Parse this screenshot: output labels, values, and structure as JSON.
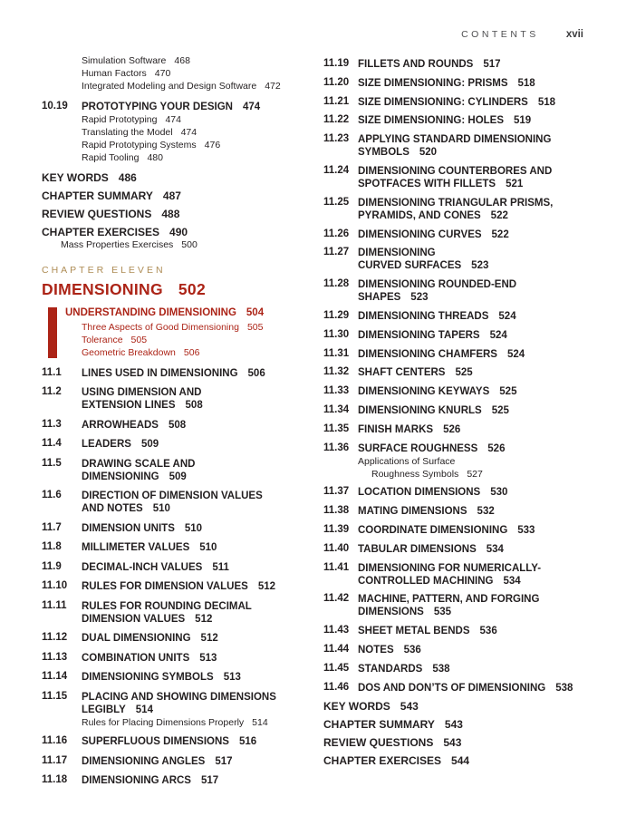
{
  "header": {
    "label": "CONTENTS",
    "page": "xvii"
  },
  "colors": {
    "red": "#ac2417",
    "tan": "#ae8c55",
    "text": "#231f20",
    "gray": "#4f4f51"
  },
  "left_column": {
    "items": [
      {
        "type": "subgroup",
        "subs": [
          {
            "lines": [
              "Simulation Software"
            ],
            "page": "468"
          },
          {
            "lines": [
              "Human Factors"
            ],
            "page": "470"
          },
          {
            "lines": [
              "Integrated Modeling and Design Software"
            ],
            "page": "472"
          }
        ]
      },
      {
        "type": "entry",
        "num": "10.19",
        "lines": [
          "PROTOTYPING YOUR DESIGN"
        ],
        "page": "474",
        "subs": [
          {
            "lines": [
              "Rapid Prototyping"
            ],
            "page": "474"
          },
          {
            "lines": [
              "Translating the Model"
            ],
            "page": "474"
          },
          {
            "lines": [
              "Rapid Prototyping Systems"
            ],
            "page": "476"
          },
          {
            "lines": [
              "Rapid Tooling"
            ],
            "page": "480"
          }
        ]
      },
      {
        "type": "back",
        "label": "KEY WORDS",
        "page": "486"
      },
      {
        "type": "back",
        "label": "CHAPTER SUMMARY",
        "page": "487"
      },
      {
        "type": "back",
        "label": "REVIEW QUESTIONS",
        "page": "488"
      },
      {
        "type": "back",
        "label": "CHAPTER EXERCISES",
        "page": "490",
        "subs": [
          {
            "lines": [
              "Mass Properties Exercises"
            ],
            "page": "500",
            "indent": "small"
          }
        ]
      },
      {
        "type": "chapter",
        "label": "CHAPTER ELEVEN",
        "title": "DIMENSIONING",
        "page": "502"
      },
      {
        "type": "highlight",
        "title": "UNDERSTANDING DIMENSIONING",
        "page": "504",
        "subs": [
          {
            "lines": [
              "Three Aspects of Good Dimensioning"
            ],
            "page": "505"
          },
          {
            "lines": [
              "Tolerance"
            ],
            "page": "505"
          },
          {
            "lines": [
              "Geometric Breakdown"
            ],
            "page": "506"
          }
        ]
      },
      {
        "type": "entry",
        "num": "11.1",
        "lines": [
          "LINES USED IN DIMENSIONING"
        ],
        "page": "506"
      },
      {
        "type": "entry",
        "num": "11.2",
        "lines": [
          "USING DIMENSION AND",
          "EXTENSION LINES"
        ],
        "page": "508"
      },
      {
        "type": "entry",
        "num": "11.3",
        "lines": [
          "ARROWHEADS"
        ],
        "page": "508"
      },
      {
        "type": "entry",
        "num": "11.4",
        "lines": [
          "LEADERS"
        ],
        "page": "509"
      },
      {
        "type": "entry",
        "num": "11.5",
        "lines": [
          "DRAWING SCALE AND",
          "DIMENSIONING"
        ],
        "page": "509"
      },
      {
        "type": "entry",
        "num": "11.6",
        "lines": [
          "DIRECTION OF DIMENSION VALUES",
          "AND NOTES"
        ],
        "page": "510"
      },
      {
        "type": "entry",
        "num": "11.7",
        "lines": [
          "DIMENSION UNITS"
        ],
        "page": "510"
      },
      {
        "type": "entry",
        "num": "11.8",
        "lines": [
          "MILLIMETER VALUES"
        ],
        "page": "510"
      },
      {
        "type": "entry",
        "num": "11.9",
        "lines": [
          "DECIMAL-INCH VALUES"
        ],
        "page": "511"
      },
      {
        "type": "entry",
        "num": "11.10",
        "lines": [
          "RULES FOR DIMENSION VALUES"
        ],
        "page": "512"
      },
      {
        "type": "entry",
        "num": "11.11",
        "lines": [
          "RULES FOR ROUNDING DECIMAL",
          "DIMENSION VALUES"
        ],
        "page": "512"
      },
      {
        "type": "entry",
        "num": "11.12",
        "lines": [
          "DUAL DIMENSIONING"
        ],
        "page": "512"
      },
      {
        "type": "entry",
        "num": "11.13",
        "lines": [
          "COMBINATION UNITS"
        ],
        "page": "513"
      },
      {
        "type": "entry",
        "num": "11.14",
        "lines": [
          "DIMENSIONING SYMBOLS"
        ],
        "page": "513"
      },
      {
        "type": "entry",
        "num": "11.15",
        "lines": [
          "PLACING AND SHOWING DIMENSIONS",
          "LEGIBLY"
        ],
        "page": "514",
        "subs": [
          {
            "lines": [
              "Rules for Placing Dimensions Properly"
            ],
            "page": "514"
          }
        ]
      },
      {
        "type": "entry",
        "num": "11.16",
        "lines": [
          "SUPERFLUOUS DIMENSIONS"
        ],
        "page": "516"
      },
      {
        "type": "entry",
        "num": "11.17",
        "lines": [
          "DIMENSIONING ANGLES"
        ],
        "page": "517"
      },
      {
        "type": "entry",
        "num": "11.18",
        "lines": [
          "DIMENSIONING ARCS"
        ],
        "page": "517"
      }
    ]
  },
  "right_column": {
    "items": [
      {
        "type": "entry",
        "num": "11.19",
        "lines": [
          "FILLETS AND ROUNDS"
        ],
        "page": "517"
      },
      {
        "type": "entry",
        "num": "11.20",
        "lines": [
          "SIZE DIMENSIONING: PRISMS"
        ],
        "page": "518"
      },
      {
        "type": "entry",
        "num": "11.21",
        "lines": [
          "SIZE DIMENSIONING: CYLINDERS"
        ],
        "page": "518"
      },
      {
        "type": "entry",
        "num": "11.22",
        "lines": [
          "SIZE DIMENSIONING: HOLES"
        ],
        "page": "519"
      },
      {
        "type": "entry",
        "num": "11.23",
        "lines": [
          "APPLYING STANDARD DIMENSIONING",
          "SYMBOLS"
        ],
        "page": "520"
      },
      {
        "type": "entry",
        "num": "11.24",
        "lines": [
          "DIMENSIONING COUNTERBORES AND",
          "SPOTFACES WITH FILLETS"
        ],
        "page": "521"
      },
      {
        "type": "entry",
        "num": "11.25",
        "lines": [
          "DIMENSIONING TRIANGULAR PRISMS,",
          "PYRAMIDS, AND CONES"
        ],
        "page": "522"
      },
      {
        "type": "entry",
        "num": "11.26",
        "lines": [
          "DIMENSIONING CURVES"
        ],
        "page": "522"
      },
      {
        "type": "entry",
        "num": "11.27",
        "lines": [
          "DIMENSIONING",
          "CURVED SURFACES"
        ],
        "page": "523"
      },
      {
        "type": "entry",
        "num": "11.28",
        "lines": [
          "DIMENSIONING ROUNDED-END",
          "SHAPES"
        ],
        "page": "523"
      },
      {
        "type": "entry",
        "num": "11.29",
        "lines": [
          "DIMENSIONING THREADS"
        ],
        "page": "524"
      },
      {
        "type": "entry",
        "num": "11.30",
        "lines": [
          "DIMENSIONING TAPERS"
        ],
        "page": "524"
      },
      {
        "type": "entry",
        "num": "11.31",
        "lines": [
          "DIMENSIONING CHAMFERS"
        ],
        "page": "524"
      },
      {
        "type": "entry",
        "num": "11.32",
        "lines": [
          "SHAFT CENTERS"
        ],
        "page": "525"
      },
      {
        "type": "entry",
        "num": "11.33",
        "lines": [
          "DIMENSIONING KEYWAYS"
        ],
        "page": "525"
      },
      {
        "type": "entry",
        "num": "11.34",
        "lines": [
          "DIMENSIONING KNURLS"
        ],
        "page": "525"
      },
      {
        "type": "entry",
        "num": "11.35",
        "lines": [
          "FINISH MARKS"
        ],
        "page": "526"
      },
      {
        "type": "entry",
        "num": "11.36",
        "lines": [
          "SURFACE ROUGHNESS"
        ],
        "page": "526",
        "subs": [
          {
            "lines": [
              "Applications of Surface",
              "Roughness Symbols"
            ],
            "page": "527"
          }
        ]
      },
      {
        "type": "entry",
        "num": "11.37",
        "lines": [
          "LOCATION DIMENSIONS"
        ],
        "page": "530"
      },
      {
        "type": "entry",
        "num": "11.38",
        "lines": [
          "MATING DIMENSIONS"
        ],
        "page": "532"
      },
      {
        "type": "entry",
        "num": "11.39",
        "lines": [
          "COORDINATE DIMENSIONING"
        ],
        "page": "533"
      },
      {
        "type": "entry",
        "num": "11.40",
        "lines": [
          "TABULAR DIMENSIONS"
        ],
        "page": "534"
      },
      {
        "type": "entry",
        "num": "11.41",
        "lines": [
          "DIMENSIONING FOR NUMERICALLY-",
          "CONTROLLED MACHINING"
        ],
        "page": "534"
      },
      {
        "type": "entry",
        "num": "11.42",
        "lines": [
          "MACHINE, PATTERN, AND FORGING",
          "DIMENSIONS"
        ],
        "page": "535"
      },
      {
        "type": "entry",
        "num": "11.43",
        "lines": [
          "SHEET METAL BENDS"
        ],
        "page": "536"
      },
      {
        "type": "entry",
        "num": "11.44",
        "lines": [
          "NOTES"
        ],
        "page": "536"
      },
      {
        "type": "entry",
        "num": "11.45",
        "lines": [
          "STANDARDS"
        ],
        "page": "538"
      },
      {
        "type": "entry",
        "num": "11.46",
        "lines": [
          "DOS AND DON’TS OF DIMENSIONING"
        ],
        "page": "538"
      },
      {
        "type": "back",
        "label": "KEY WORDS",
        "page": "543"
      },
      {
        "type": "back",
        "label": "CHAPTER SUMMARY",
        "page": "543"
      },
      {
        "type": "back",
        "label": "REVIEW QUESTIONS",
        "page": "543"
      },
      {
        "type": "back",
        "label": "CHAPTER EXERCISES",
        "page": "544"
      }
    ]
  }
}
